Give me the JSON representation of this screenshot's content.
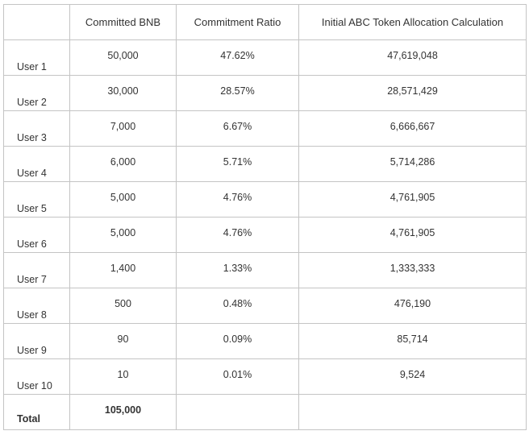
{
  "headers": [
    "",
    "Committed BNB",
    "Commitment Ratio",
    "Initial ABC Token Allocation Calculation"
  ],
  "rows": [
    {
      "user": "User 1",
      "committed": "50,000",
      "ratio": "47.62%",
      "allocation": "47,619,048"
    },
    {
      "user": "User 2",
      "committed": "30,000",
      "ratio": "28.57%",
      "allocation": "28,571,429"
    },
    {
      "user": "User 3",
      "committed": "7,000",
      "ratio": "6.67%",
      "allocation": "6,666,667"
    },
    {
      "user": "User 4",
      "committed": "6,000",
      "ratio": "5.71%",
      "allocation": "5,714,286"
    },
    {
      "user": "User 5",
      "committed": "5,000",
      "ratio": "4.76%",
      "allocation": "4,761,905"
    },
    {
      "user": "User 6",
      "committed": "5,000",
      "ratio": "4.76%",
      "allocation": "4,761,905"
    },
    {
      "user": "User 7",
      "committed": "1,400",
      "ratio": "1.33%",
      "allocation": "1,333,333"
    },
    {
      "user": "User 8",
      "committed": "500",
      "ratio": "0.48%",
      "allocation": "476,190"
    },
    {
      "user": "User 9",
      "committed": "90",
      "ratio": "0.09%",
      "allocation": "85,714"
    },
    {
      "user": "User 10",
      "committed": "10",
      "ratio": "0.01%",
      "allocation": "9,524"
    }
  ],
  "total": {
    "label": "Total",
    "committed": "105,000",
    "ratio": "",
    "allocation": ""
  }
}
